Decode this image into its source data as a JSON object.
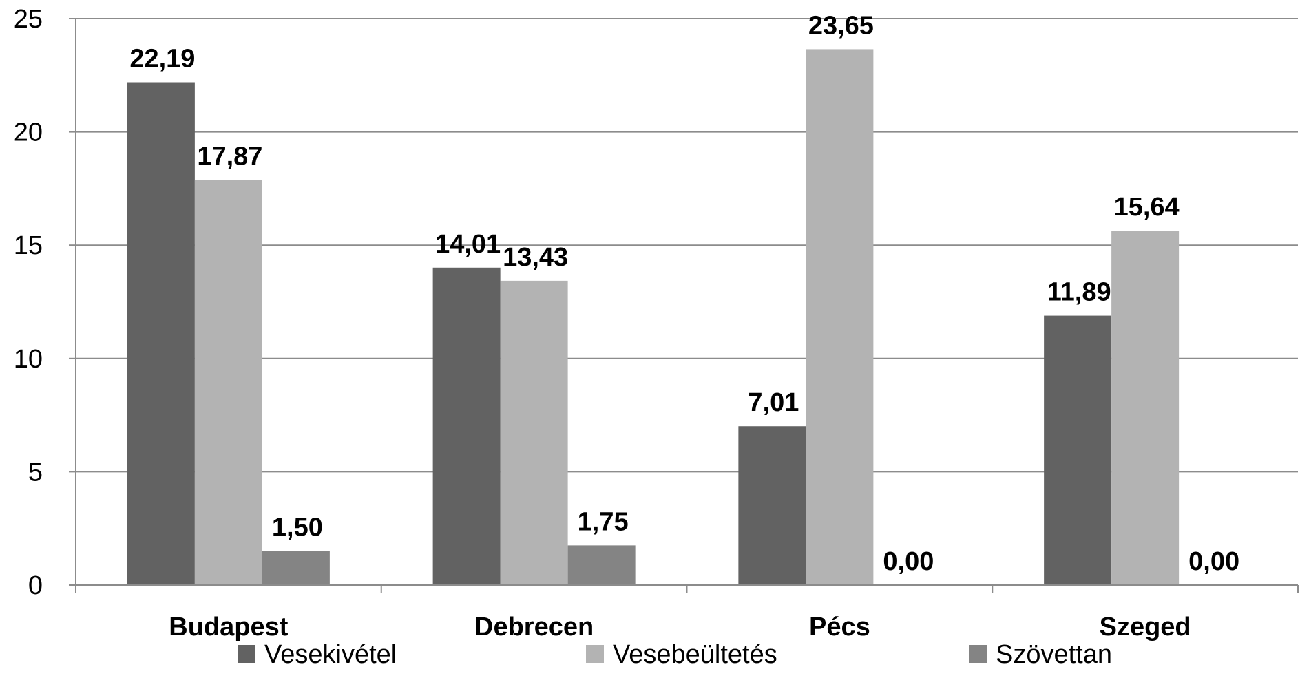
{
  "chart_data": {
    "type": "bar",
    "title": "",
    "xlabel": "",
    "ylabel": "",
    "categories": [
      "Budapest",
      "Debrecen",
      "Pécs",
      "Szeged"
    ],
    "ylim": [
      0,
      25
    ],
    "yticks": [
      0,
      5,
      10,
      15,
      20,
      25
    ],
    "ytick_labels": [
      "0",
      "5",
      "10",
      "15",
      "20",
      "25"
    ],
    "grid": true,
    "legend_position": "bottom",
    "series": [
      {
        "name": "Vesekivétel",
        "color": "#626262",
        "values": [
          22.19,
          14.01,
          7.01,
          11.89
        ],
        "labels": [
          "22,19",
          "14,01",
          "7,01",
          "11,89"
        ]
      },
      {
        "name": "Vesebeültetés",
        "color": "#b3b3b3",
        "values": [
          17.87,
          13.43,
          23.65,
          15.64
        ],
        "labels": [
          "17,87",
          "13,43",
          "23,65",
          "15,64"
        ]
      },
      {
        "name": "Szövettan",
        "color": "#848484",
        "values": [
          1.5,
          1.75,
          0.0,
          0.0
        ],
        "labels": [
          "1,50",
          "1,75",
          "0,00",
          "0,00"
        ]
      }
    ]
  }
}
